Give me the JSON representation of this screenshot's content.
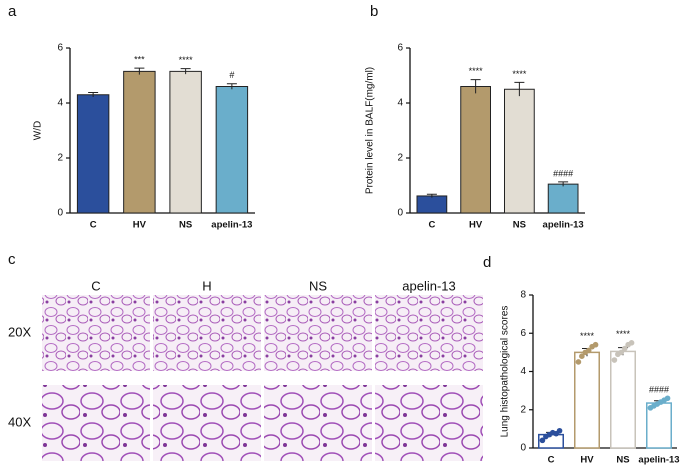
{
  "chart_data": [
    {
      "type": "bar",
      "panel": "a",
      "ylabel": "W/D",
      "categories": [
        "C",
        "HV",
        "NS",
        "apelin-13"
      ],
      "values": [
        4.3,
        5.15,
        5.15,
        4.6
      ],
      "errors": [
        0.08,
        0.12,
        0.1,
        0.1
      ],
      "annotations": [
        null,
        "***",
        "****",
        "#"
      ],
      "colors": [
        "#2b4f9c",
        "#b39a6c",
        "#e2ddd3",
        "#6aaecb"
      ],
      "bar_style": "filled",
      "ylim": [
        0,
        6
      ],
      "yticks": [
        0,
        2,
        4,
        6
      ]
    },
    {
      "type": "bar",
      "panel": "b",
      "ylabel": "Protein level in BALF(mg/ml)",
      "categories": [
        "C",
        "HV",
        "NS",
        "apelin-13"
      ],
      "values": [
        0.62,
        4.6,
        4.5,
        1.05
      ],
      "errors": [
        0.06,
        0.25,
        0.25,
        0.08
      ],
      "annotations": [
        null,
        "****",
        "****",
        "####"
      ],
      "colors": [
        "#2b4f9c",
        "#b39a6c",
        "#e2ddd3",
        "#6aaecb"
      ],
      "bar_style": "filled",
      "ylim": [
        0,
        6
      ],
      "yticks": [
        0,
        2,
        4,
        6
      ]
    },
    {
      "type": "bar",
      "panel": "d",
      "ylabel": "Lung histopathological scores",
      "categories": [
        "C",
        "HV",
        "NS",
        "apelin-13"
      ],
      "values": [
        0.7,
        5.0,
        5.05,
        2.35
      ],
      "errors": [
        0.12,
        0.2,
        0.2,
        0.12
      ],
      "points": [
        [
          0.4,
          0.6,
          0.7,
          0.8,
          0.75,
          0.9
        ],
        [
          4.5,
          4.8,
          5.0,
          5.1,
          5.3,
          5.4
        ],
        [
          4.6,
          4.9,
          5.0,
          5.2,
          5.4,
          5.5
        ],
        [
          2.1,
          2.2,
          2.3,
          2.4,
          2.5,
          2.6
        ]
      ],
      "annotations": [
        null,
        "****",
        "****",
        "####"
      ],
      "colors": [
        "#2b4f9c",
        "#b39a6c",
        "#c8c3ba",
        "#6aaecb"
      ],
      "bar_style": "outline",
      "ylim": [
        0,
        8
      ],
      "yticks": [
        0,
        2,
        4,
        6,
        8
      ]
    }
  ],
  "histology": {
    "panel": "c",
    "columns": [
      "C",
      "H",
      "NS",
      "apelin-13"
    ],
    "rows": [
      "20X",
      "40X"
    ]
  }
}
